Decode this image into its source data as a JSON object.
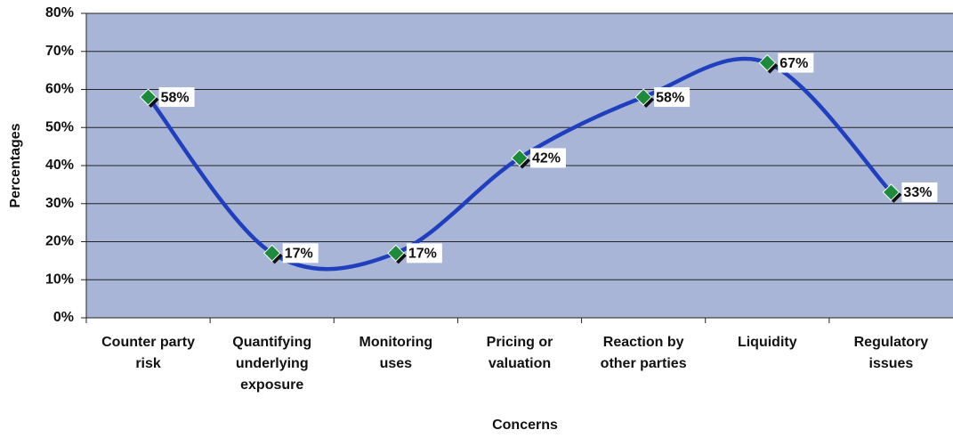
{
  "chart_data": {
    "type": "line",
    "x_label": "Concerns",
    "y_label": "Percentages",
    "categories": [
      "Counter party risk",
      "Quantifying underlying exposure",
      "Monitoring uses",
      "Pricing or valuation",
      "Reaction by other parties",
      "Liquidity",
      "Regulatory issues"
    ],
    "series": [
      {
        "name": "Concerns",
        "color": "#1f3fbf",
        "marker_color": "#1e8a3c",
        "values": [
          58,
          17,
          17,
          42,
          58,
          67,
          33
        ],
        "value_labels": [
          "58%",
          "17%",
          "17%",
          "42%",
          "58%",
          "67%",
          "33%"
        ]
      }
    ],
    "ylim": [
      0,
      80
    ],
    "yticks": [
      {
        "value": 0,
        "label": "0%"
      },
      {
        "value": 10,
        "label": "10%"
      },
      {
        "value": 20,
        "label": "20%"
      },
      {
        "value": 30,
        "label": "30%"
      },
      {
        "value": 40,
        "label": "40%"
      },
      {
        "value": 50,
        "label": "50%"
      },
      {
        "value": 60,
        "label": "60%"
      },
      {
        "value": 70,
        "label": "70%"
      },
      {
        "value": 80,
        "label": "80%"
      }
    ],
    "grid": true,
    "smooth": true,
    "plot_background": "#a9b5d6"
  }
}
